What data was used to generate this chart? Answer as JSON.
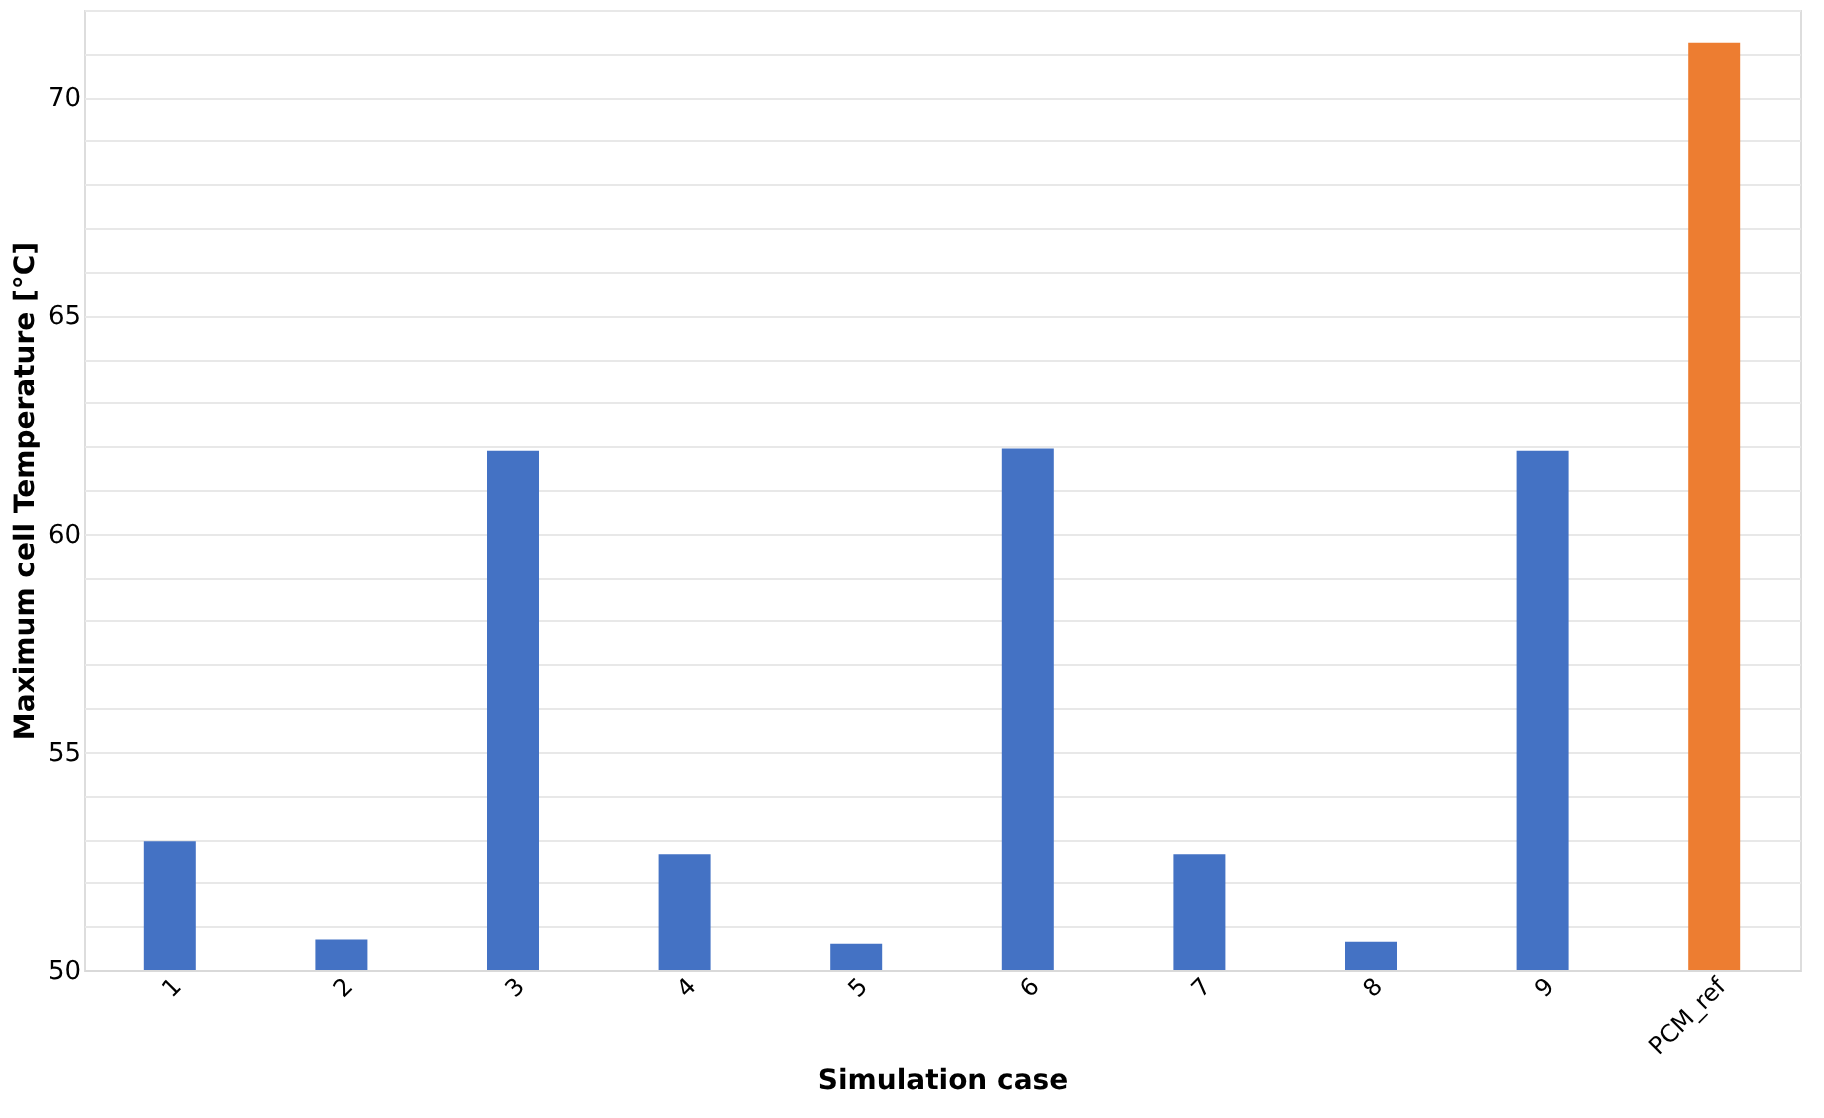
{
  "chart_data": {
    "type": "bar",
    "xlabel": "Simulation case",
    "ylabel": "Maximum cell Temperature [°C]",
    "categories": [
      "1",
      "2",
      "3",
      "4",
      "5",
      "6",
      "7",
      "8",
      "9",
      "PCM_ref"
    ],
    "values": [
      52.95,
      50.7,
      61.9,
      52.65,
      50.6,
      61.95,
      52.65,
      50.65,
      61.9,
      71.25
    ],
    "colors": [
      "#4472c4",
      "#4472c4",
      "#4472c4",
      "#4472c4",
      "#4472c4",
      "#4472c4",
      "#4472c4",
      "#4472c4",
      "#4472c4",
      "#ed7d31"
    ],
    "ylim": [
      50,
      72
    ],
    "yticks": [
      50,
      {
        "value": 51,
        "label": null
      },
      {
        "value": 52,
        "label": null
      },
      {
        "value": 53,
        "label": null
      },
      {
        "value": 54,
        "label": null
      },
      55,
      {
        "value": 56,
        "label": null
      },
      {
        "value": 57,
        "label": null
      },
      {
        "value": 58,
        "label": null
      },
      {
        "value": 59,
        "label": null
      },
      60,
      {
        "value": 61,
        "label": null
      },
      {
        "value": 62,
        "label": null
      },
      {
        "value": 63,
        "label": null
      },
      {
        "value": 64,
        "label": null
      },
      65,
      {
        "value": 66,
        "label": null
      },
      {
        "value": 67,
        "label": null
      },
      {
        "value": 68,
        "label": null
      },
      {
        "value": 69,
        "label": null
      },
      70,
      {
        "value": 71,
        "label": null
      },
      {
        "value": 72,
        "label": null
      }
    ],
    "grid": true
  }
}
